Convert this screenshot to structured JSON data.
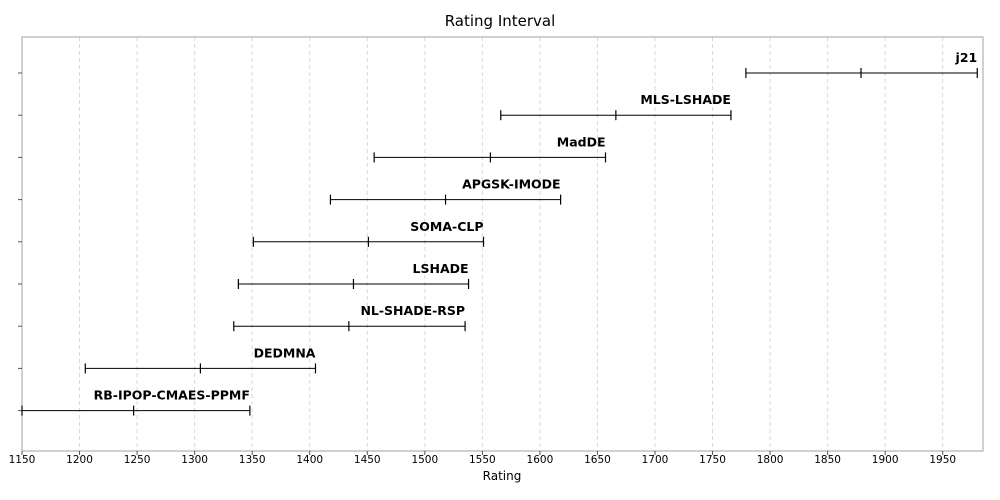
{
  "chart_data": {
    "type": "interval",
    "title": "Rating Interval",
    "xlabel": "Rating",
    "ylabel": "",
    "xlim": [
      1150,
      1985
    ],
    "xticks": [
      1150,
      1200,
      1250,
      1300,
      1350,
      1400,
      1450,
      1500,
      1550,
      1600,
      1650,
      1700,
      1750,
      1800,
      1850,
      1900,
      1950
    ],
    "grid": true,
    "series": [
      {
        "name": "j21",
        "low": 1779,
        "mid": 1879,
        "high": 1980
      },
      {
        "name": "MLS-LSHADE",
        "low": 1566,
        "mid": 1666,
        "high": 1766
      },
      {
        "name": "MadDE",
        "low": 1456,
        "mid": 1557,
        "high": 1657
      },
      {
        "name": "APGSK-IMODE",
        "low": 1418,
        "mid": 1518,
        "high": 1618
      },
      {
        "name": "SOMA-CLP",
        "low": 1351,
        "mid": 1451,
        "high": 1551
      },
      {
        "name": "LSHADE",
        "low": 1338,
        "mid": 1438,
        "high": 1538
      },
      {
        "name": "NL-SHADE-RSP",
        "low": 1334,
        "mid": 1434,
        "high": 1535
      },
      {
        "name": "DEDMNA",
        "low": 1205,
        "mid": 1305,
        "high": 1405
      },
      {
        "name": "RB-IPOP-CMAES-PPMF",
        "low": 1150,
        "mid": 1247,
        "high": 1348
      }
    ]
  }
}
